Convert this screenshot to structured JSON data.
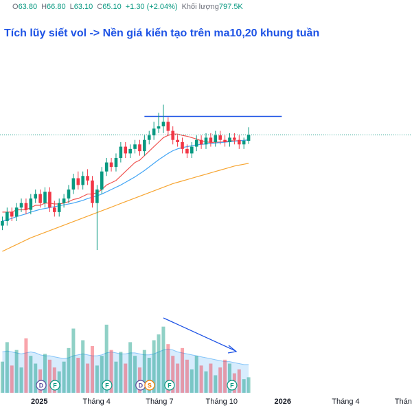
{
  "chart_data": {
    "type": "candlestick",
    "title": "Tích lũy siết vol -> Nền giá kiến tạo trên ma10,20 khung tuần",
    "header": [
      "O",
      "63.80",
      "H",
      "66.80",
      "L",
      "63.10",
      "C",
      "65.10",
      "+1.30 (+2.04%)",
      "Khối lượng",
      "797.5K"
    ],
    "up_color": "#089981",
    "down_color": "#f23645",
    "open": [
      45,
      46,
      48,
      47,
      49,
      50,
      48.5,
      51,
      52,
      50,
      52.5,
      49,
      48,
      50,
      51,
      53,
      55.5,
      54,
      56,
      55,
      50,
      53,
      57,
      59,
      58,
      60,
      62.5,
      61,
      62,
      63,
      61.5,
      64,
      65,
      66.5,
      67,
      68,
      66,
      64,
      63.5,
      62,
      61,
      62.5,
      64,
      63,
      64.5,
      63.5,
      65,
      64,
      63.5,
      64.5,
      64,
      63,
      63.8
    ],
    "high": [
      47,
      49,
      49,
      50,
      51,
      51,
      52,
      53,
      53,
      53.5,
      53.5,
      50.5,
      51,
      52,
      54,
      56.5,
      57,
      57,
      57.5,
      56,
      54,
      58,
      60,
      60,
      61,
      63.5,
      63.5,
      63,
      64,
      64,
      65,
      66,
      68,
      70,
      71.8,
      69,
      67,
      65,
      64.5,
      63,
      63.5,
      65,
      65,
      65.5,
      65.5,
      66,
      66,
      65,
      65.5,
      65.5,
      65,
      64.5,
      66.8
    ],
    "low": [
      44,
      45,
      46,
      46,
      48,
      47.5,
      47.5,
      50,
      49,
      49,
      48,
      47,
      47,
      49,
      50,
      52,
      53,
      53,
      54,
      49,
      39.6,
      52,
      56,
      57,
      57,
      59,
      60,
      60,
      61,
      60.5,
      60.5,
      63,
      64,
      65.5,
      65.5,
      65,
      63,
      62.5,
      61,
      60,
      60,
      61.5,
      62,
      62,
      62.5,
      62.5,
      63,
      62.5,
      62.5,
      63,
      62,
      62,
      63.1
    ],
    "close": [
      46,
      48,
      47,
      49,
      50,
      48.5,
      51,
      52,
      50,
      52.5,
      49,
      48,
      50,
      51,
      53,
      55.5,
      54,
      56,
      55,
      50,
      53,
      57,
      59,
      58,
      60,
      62.5,
      61,
      62,
      63,
      61.5,
      64,
      65,
      66.5,
      67,
      68,
      66,
      64,
      63.5,
      62,
      61,
      62.5,
      64,
      63,
      64.5,
      63.5,
      65,
      64,
      63.5,
      64.5,
      64,
      63,
      63.8,
      65.1
    ],
    "lines": [
      {
        "color": "#ef5350",
        "values": [
          48,
          48,
          48,
          48.5,
          48.5,
          48.5,
          49,
          49.5,
          49.5,
          50,
          50,
          49.8,
          49.8,
          50,
          50.3,
          50.8,
          51,
          51.5,
          52,
          52,
          52.3,
          53,
          54,
          54.5,
          55,
          56,
          57,
          58,
          59,
          59.5,
          60.5,
          61.5,
          62.5,
          63.5,
          64.5,
          65,
          65.3,
          65.3,
          65,
          64.8,
          64.5,
          64.2,
          63.8,
          63.6,
          63.4,
          63.5,
          63.5,
          63.6,
          63.8,
          63.8,
          63.8,
          63.9,
          64
        ]
      },
      {
        "color": "#42a5f5",
        "values": [
          46,
          46.3,
          46.6,
          47,
          47.3,
          47.6,
          48,
          48.3,
          48.6,
          48.8,
          49,
          49.2,
          49.4,
          49.6,
          49.8,
          50,
          50.3,
          50.6,
          51,
          51.3,
          51.6,
          52,
          52.5,
          53,
          53.5,
          54,
          54.6,
          55.2,
          55.8,
          56.5,
          57.2,
          58,
          58.8,
          59.6,
          60.3,
          61,
          61.6,
          62,
          62.3,
          62.5,
          62.7,
          62.9,
          63,
          63.1,
          63.2,
          63.3,
          63.4,
          63.5,
          63.6,
          63.7,
          63.8,
          63.9,
          64
        ]
      },
      {
        "color": "#f7a531",
        "values": [
          39.3,
          39.8,
          40.3,
          40.8,
          41.3,
          41.8,
          42.3,
          42.7,
          43.1,
          43.5,
          43.9,
          44.3,
          44.7,
          45.1,
          45.5,
          45.9,
          46.3,
          46.7,
          47.1,
          47.5,
          47.9,
          48.3,
          48.7,
          49.1,
          49.5,
          49.9,
          50.3,
          50.7,
          51.1,
          51.5,
          51.9,
          52.3,
          52.7,
          53.1,
          53.5,
          53.9,
          54.3,
          54.6,
          54.9,
          55.2,
          55.5,
          55.8,
          56.1,
          56.4,
          56.7,
          57,
          57.3,
          57.6,
          57.9,
          58.2,
          58.4,
          58.6,
          58.8
        ]
      }
    ],
    "resistance": {
      "y": 69.2,
      "x": [
        30,
        59
      ],
      "color": "#1e53e5"
    },
    "volume": {
      "values": [
        1600000,
        2600000,
        1400000,
        2200000,
        1300000,
        2800000,
        1900000,
        1500000,
        1200000,
        2000000,
        1700000,
        1300000,
        1100000,
        1600000,
        2300000,
        3300000,
        1800000,
        2700000,
        1500000,
        2400000,
        1400000,
        1900000,
        3500000,
        2200000,
        1600000,
        2100000,
        1500000,
        2600000,
        1900000,
        1300000,
        2200000,
        1800000,
        2700000,
        3000000,
        3400000,
        2500000,
        1900000,
        1500000,
        2300000,
        1700000,
        1200000,
        1900000,
        1400000,
        1100000,
        1500000,
        900000,
        1300000,
        1700000,
        1500000,
        1000000,
        1200000,
        700000,
        797500
      ],
      "ma": [
        2100000,
        2150000,
        2100000,
        2050000,
        2000000,
        2050000,
        2100000,
        2050000,
        1950000,
        1900000,
        1900000,
        1850000,
        1800000,
        1750000,
        1800000,
        1900000,
        1950000,
        2000000,
        1950000,
        1900000,
        1900000,
        1950000,
        2050000,
        2100000,
        2050000,
        2000000,
        2000000,
        2050000,
        2050000,
        2000000,
        1950000,
        1950000,
        2000000,
        2100000,
        2200000,
        2250000,
        2200000,
        2100000,
        2050000,
        2000000,
        1950000,
        1900000,
        1850000,
        1800000,
        1750000,
        1700000,
        1650000,
        1600000,
        1600000,
        1550000,
        1500000,
        1450000,
        1450000
      ],
      "ma_color": "#2196f3",
      "ylim": [
        0,
        3600000
      ]
    },
    "events": [
      {
        "label": "D",
        "x": 8.2
      },
      {
        "label": "F",
        "x": 11.1
      },
      {
        "label": "F",
        "x": 22.1
      },
      {
        "label": "D",
        "x": 29.2
      },
      {
        "label": "S",
        "x": 31.1
      },
      {
        "label": "F",
        "x": 35.3
      },
      {
        "label": "F",
        "x": 48.5
      }
    ],
    "xlim": [
      -0.5,
      86.5
    ],
    "xticks": [
      {
        "value": 7.8,
        "label": "2025"
      },
      {
        "value": 19.9,
        "label": "Tháng 4"
      },
      {
        "value": 33.2,
        "label": "Tháng 7"
      },
      {
        "value": 46.3,
        "label": "Tháng 10"
      },
      {
        "value": 59.2,
        "label": "2026"
      },
      {
        "value": 72.5,
        "label": "Tháng 4"
      },
      {
        "value": 85.1,
        "label": "Tháng"
      }
    ],
    "ylim": [
      25,
      95
    ]
  }
}
